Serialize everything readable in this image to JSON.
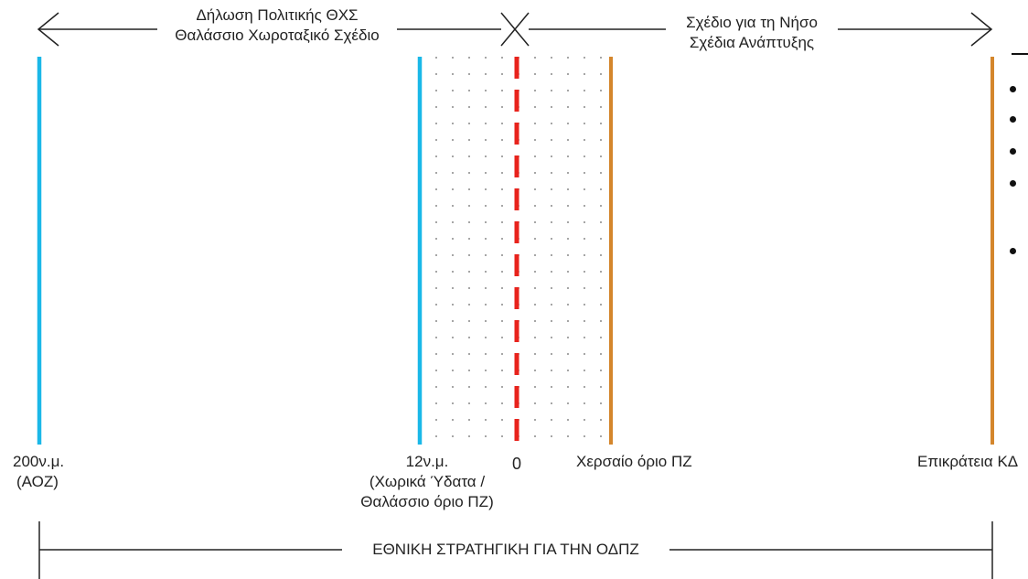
{
  "top": {
    "left_line1": "Δήλωση Πολιτικής ΘΧΣ",
    "left_line2": "Θαλάσσιο Χωροταξικό Σχέδιο",
    "right_line1": "Σχέδιο για τη Νήσο",
    "right_line2": "Σχέδια Ανάπτυξης"
  },
  "markers": {
    "aoz_line1": "200ν.μ.",
    "aoz_line2": "(ΑΟΖ)",
    "tw_line1": "12ν.μ.",
    "tw_line2": "(Χωρικά Ύδατα /",
    "tw_line3": "Θαλάσσιο όριο ΠΖ)",
    "zero": "0",
    "land_limit": "Χερσαίο όριο ΠΖ",
    "epikrateia": "Επικράτεια ΚΔ"
  },
  "bottom": {
    "strategy": "ΕΘΝΙΚΗ ΣΤΡΑΤΗΓΙΚΗ ΓΙΑ ΤΗΝ ΟΔΠΖ"
  },
  "colors": {
    "sea_line": "#1ab8e8",
    "land_line": "#d4862c",
    "coast_dash": "#e8231c",
    "stroke": "#222222"
  }
}
